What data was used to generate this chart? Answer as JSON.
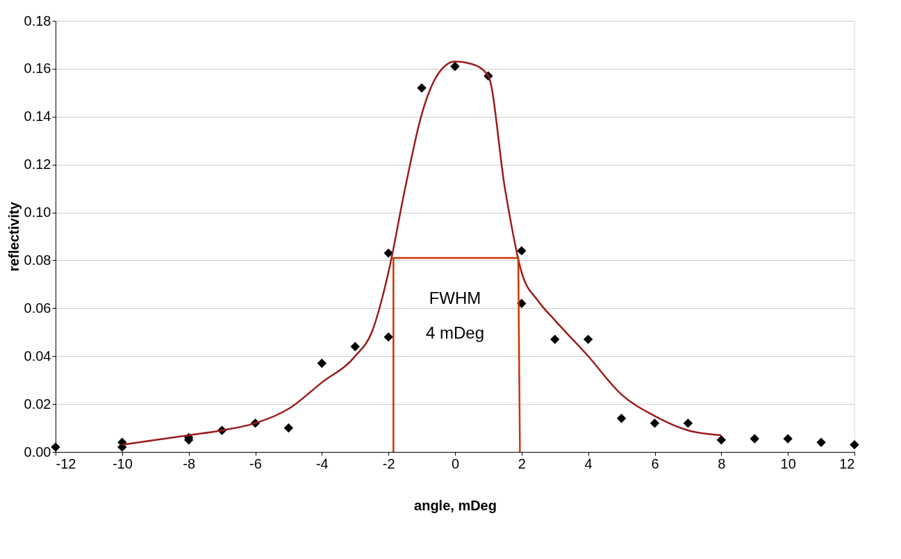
{
  "chart_data": {
    "type": "scatter",
    "xlabel": "angle, mDeg",
    "ylabel": "reflectivity",
    "xlim": [
      -12,
      12
    ],
    "xticks": [
      -12,
      -10,
      -8,
      -6,
      -4,
      -2,
      0,
      2,
      4,
      6,
      8,
      10,
      12
    ],
    "ylim": [
      0,
      0.18
    ],
    "yticks": [
      {
        "value": 0,
        "label": "0.00"
      },
      {
        "value": 0.02,
        "label": "0.02"
      },
      {
        "value": 0.04,
        "label": "0.04"
      },
      {
        "value": 0.06,
        "label": "0.06"
      },
      {
        "value": 0.08,
        "label": "0.08"
      },
      {
        "value": 0.1,
        "label": "0.10"
      },
      {
        "value": 0.12,
        "label": "0.12"
      },
      {
        "value": 0.14,
        "label": "0.14"
      },
      {
        "value": 0.16,
        "label": "0.16"
      },
      {
        "value": 0.18,
        "label": "0.18"
      }
    ],
    "grid": "y",
    "annotations": [
      "FWHM",
      "4 mDeg"
    ],
    "series": [
      {
        "marker": "diamond",
        "color": "#000000",
        "x": [
          -12,
          -10,
          -10,
          -8,
          -8,
          -7,
          -6,
          -5,
          -4,
          -3,
          -2,
          -2,
          -1,
          0,
          1,
          2,
          2,
          3,
          4,
          5,
          6,
          7,
          8,
          9,
          10,
          11,
          12
        ],
        "values": [
          0.002,
          0.004,
          0.002,
          0.006,
          0.005,
          0.009,
          0.012,
          0.01,
          0.037,
          0.044,
          0.083,
          0.048,
          0.152,
          0.161,
          0.157,
          0.084,
          0.062,
          0.047,
          0.047,
          0.014,
          0.012,
          0.012,
          0.005,
          0.0055,
          0.0055,
          0.004,
          0.003
        ]
      },
      {
        "type": "line",
        "color": "#9b1b1b",
        "x": [
          -10,
          -9,
          -8,
          -7,
          -6,
          -5,
          -4,
          -3,
          -2.5,
          -2,
          -1.5,
          -1,
          -0.5,
          0,
          0.5,
          1,
          1.5,
          2,
          2.5,
          3,
          4,
          5,
          6,
          7,
          8
        ],
        "values": [
          0.003,
          0.005,
          0.007,
          0.009,
          0.012,
          0.018,
          0.029,
          0.04,
          0.05,
          0.075,
          0.11,
          0.141,
          0.158,
          0.163,
          0.162,
          0.157,
          0.11,
          0.075,
          0.063,
          0.055,
          0.04,
          0.024,
          0.015,
          0.009,
          0.007
        ]
      },
      {
        "type": "line",
        "color": "#cc3300",
        "x": [
          -1.85,
          -1.85,
          1.9,
          1.95
        ],
        "values": [
          0,
          0.081,
          0.081,
          0
        ]
      }
    ]
  }
}
